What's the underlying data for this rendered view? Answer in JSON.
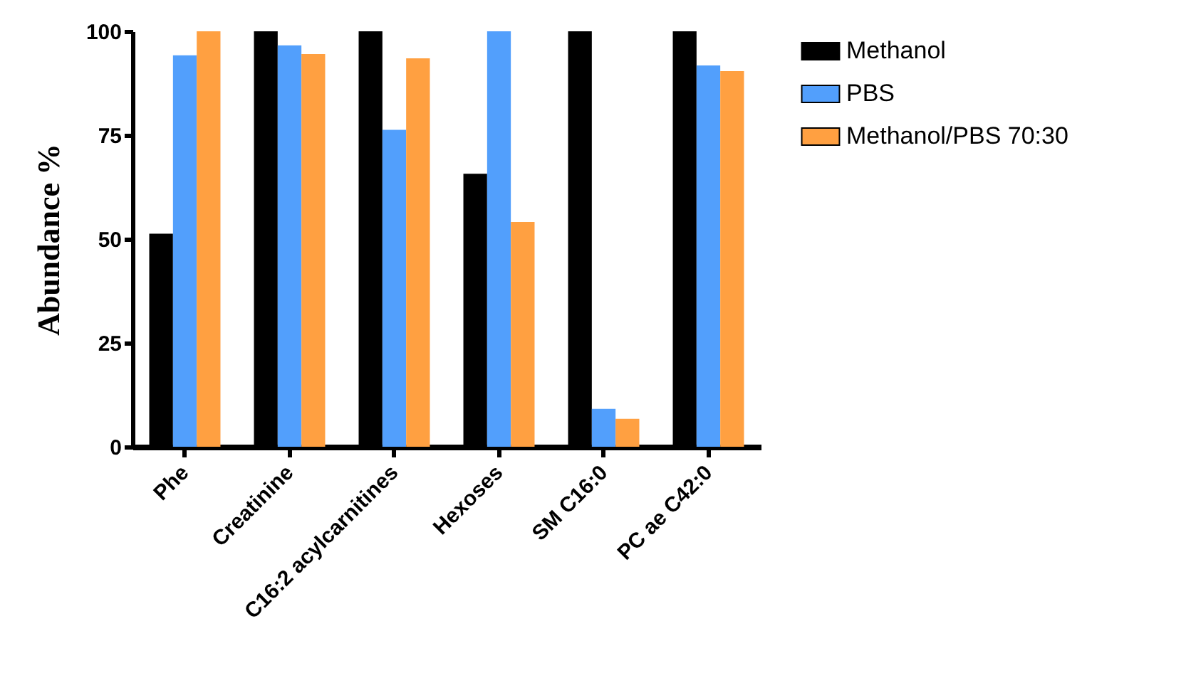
{
  "chart_data": {
    "type": "bar",
    "ylabel": "Abundance %",
    "categories": [
      "Phe",
      "Creatinine",
      "C16:2 acylcarnitines",
      "Hexoses",
      "SM C16:0",
      "PC ae C42:0"
    ],
    "series": [
      {
        "name": "Methanol",
        "color": "#000000",
        "values": [
          51.3,
          100,
          100,
          65.7,
          100,
          100
        ]
      },
      {
        "name": "PBS",
        "color": "#529ffc",
        "values": [
          94.2,
          96.6,
          76.3,
          100,
          9.1,
          91.8
        ]
      },
      {
        "name": "Methanol/PBS 70:30",
        "color": "#ffa041",
        "values": [
          100,
          94.5,
          93.5,
          54.1,
          6.7,
          90.4
        ]
      }
    ],
    "ylim": [
      0,
      100
    ],
    "yticks": [
      0,
      25,
      50,
      75,
      100
    ],
    "grid": false,
    "legend": "top right"
  }
}
